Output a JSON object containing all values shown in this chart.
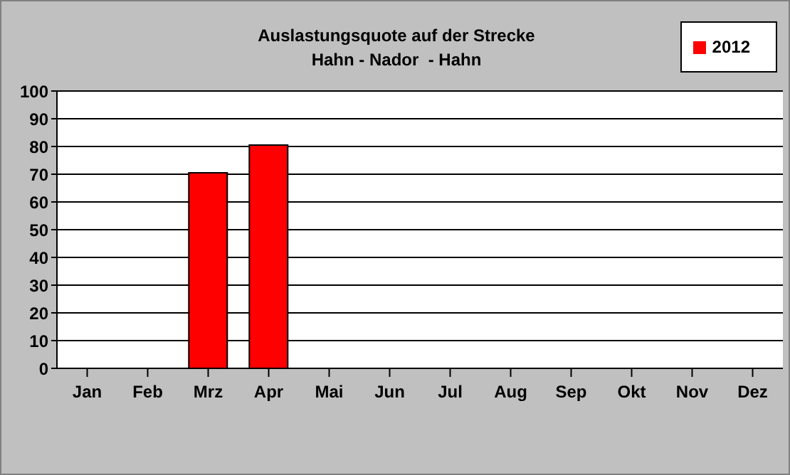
{
  "chart_data": {
    "type": "bar",
    "title": "Auslastungsquote auf der Strecke\nHahn - Nador  - Hahn",
    "categories": [
      "Jan",
      "Feb",
      "Mrz",
      "Apr",
      "Mai",
      "Jun",
      "Jul",
      "Aug",
      "Sep",
      "Okt",
      "Nov",
      "Dez"
    ],
    "series": [
      {
        "name": "2012",
        "color": "#ff0000",
        "values": [
          null,
          null,
          70.5,
          80.5,
          null,
          null,
          null,
          null,
          null,
          null,
          null,
          null
        ]
      }
    ],
    "ylim": [
      0,
      100
    ],
    "yticks": [
      0,
      10,
      20,
      30,
      40,
      50,
      60,
      70,
      80,
      90,
      100
    ],
    "grid": "y",
    "legend": "top right"
  }
}
